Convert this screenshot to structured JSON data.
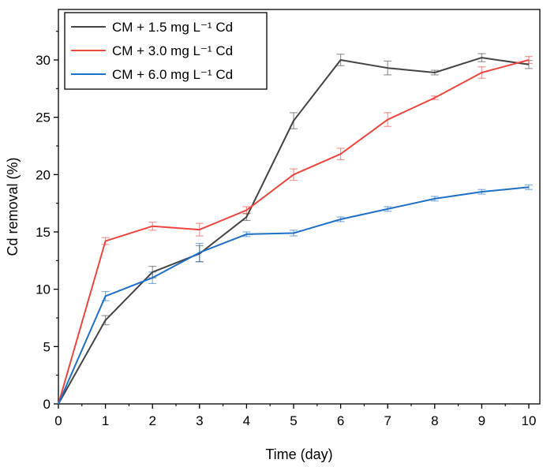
{
  "chart_data": {
    "type": "line",
    "xlabel": "Time (day)",
    "ylabel": "Cd removal (%)",
    "xlim": [
      0,
      10
    ],
    "ylim": [
      0,
      33
    ],
    "x_ticks": [
      0,
      1,
      2,
      3,
      4,
      5,
      6,
      7,
      8,
      9,
      10
    ],
    "y_ticks": [
      0,
      5,
      10,
      15,
      20,
      25,
      30
    ],
    "grid": false,
    "legend_position": "top-left",
    "x": [
      0,
      1,
      2,
      3,
      4,
      5,
      6,
      7,
      8,
      9,
      10
    ],
    "series": [
      {
        "name": "CM + 1.5 mg L⁻¹ Cd",
        "color": "#444444",
        "values": [
          0,
          7.3,
          11.5,
          13.1,
          16.3,
          24.7,
          30.0,
          29.3,
          28.9,
          30.2,
          29.6
        ],
        "errors": [
          0,
          0.4,
          0.5,
          0.7,
          0.3,
          0.7,
          0.5,
          0.6,
          0.2,
          0.35,
          0.35
        ]
      },
      {
        "name": "CM + 3.0 mg L⁻¹ Cd",
        "color": "#f0453f",
        "values": [
          0,
          14.2,
          15.5,
          15.2,
          16.9,
          20.0,
          21.8,
          24.8,
          26.7,
          28.9,
          30.0
        ],
        "errors": [
          0,
          0.3,
          0.35,
          0.55,
          0.3,
          0.5,
          0.5,
          0.6,
          0.15,
          0.5,
          0.3
        ]
      },
      {
        "name": "CM + 6.0 mg L⁻¹ Cd",
        "color": "#1f6fc8",
        "values": [
          0,
          9.4,
          11.0,
          13.2,
          14.8,
          14.9,
          16.1,
          17.0,
          17.9,
          18.5,
          18.9
        ],
        "errors": [
          0,
          0.4,
          0.5,
          0.8,
          0.2,
          0.25,
          0.2,
          0.2,
          0.2,
          0.2,
          0.2
        ]
      }
    ]
  }
}
